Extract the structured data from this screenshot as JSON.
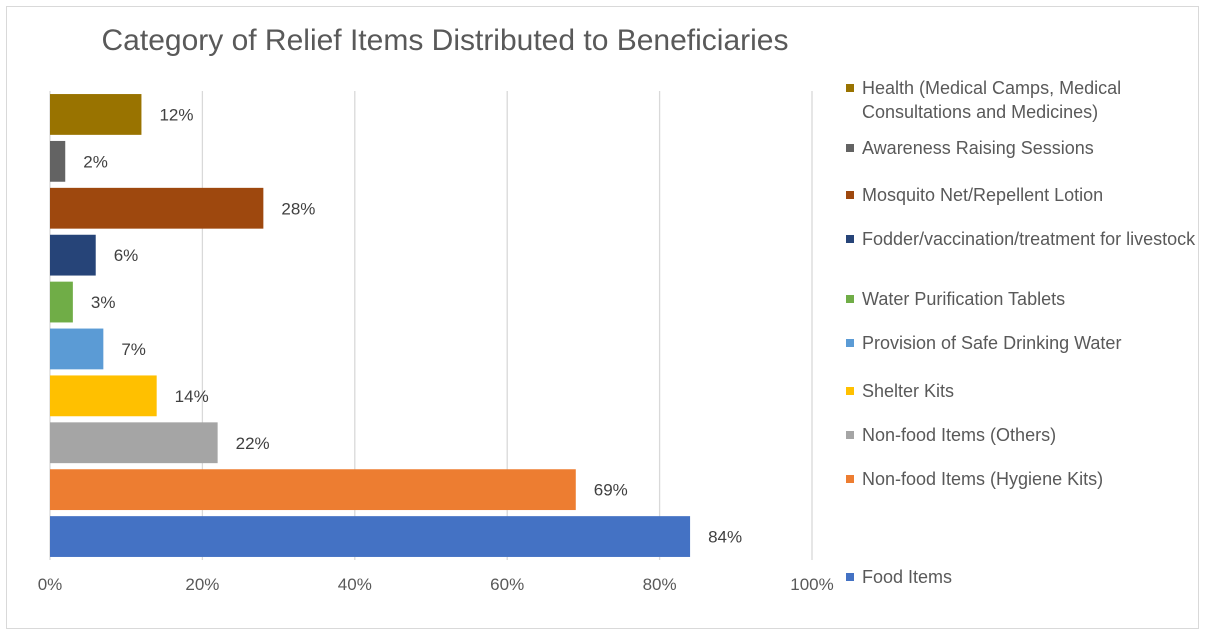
{
  "chart_data": {
    "type": "bar",
    "orientation": "horizontal",
    "title": "Category of Relief Items Distributed to Beneficiaries",
    "categories": [
      "Food Items",
      "Non-food Items (Hygiene Kits)",
      "Non-food Items (Others)",
      "Shelter Kits",
      "Provision of Safe Drinking Water",
      "Water Purification Tablets",
      "Fodder/vaccination/treatment for livestock",
      "Mosquito Net/Repellent Lotion",
      "Awareness Raising Sessions",
      "Health (Medical Camps, Medical Consultations and Medicines)"
    ],
    "values": [
      84,
      69,
      22,
      14,
      7,
      3,
      6,
      28,
      2,
      12
    ],
    "value_labels": [
      "84%",
      "69%",
      "22%",
      "14%",
      "7%",
      "3%",
      "6%",
      "28%",
      "2%",
      "12%"
    ],
    "colors": [
      "#4472C4",
      "#ED7D31",
      "#A5A5A5",
      "#FFC000",
      "#5B9BD5",
      "#70AD47",
      "#264478",
      "#9E480E",
      "#636363",
      "#997300"
    ],
    "x_ticks": [
      "0%",
      "20%",
      "40%",
      "60%",
      "80%",
      "100%"
    ],
    "xlim": [
      0,
      100
    ],
    "grid": true,
    "legend_position": "right"
  }
}
